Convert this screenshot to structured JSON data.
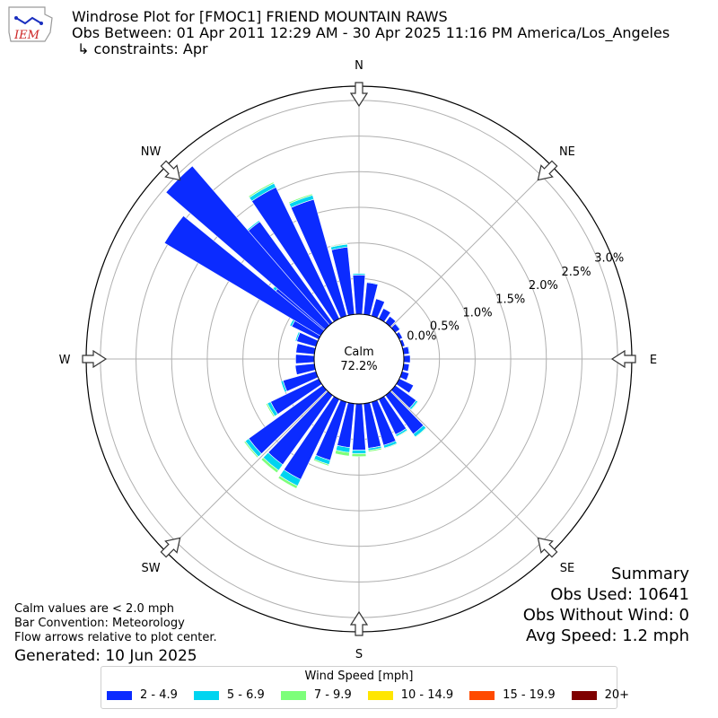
{
  "header": {
    "logo_text": "IEM",
    "title": "Windrose Plot for [FMOC1] FRIEND MOUNTAIN RAWS",
    "obs_between": "Obs Between: 01 Apr 2011 12:29 AM - 30 Apr 2025 11:16 PM America/Los_Angeles",
    "constraints": "↳ constraints: Apr"
  },
  "chart_data": {
    "type": "windrose",
    "directions": [
      "N",
      "NE",
      "E",
      "SE",
      "S",
      "SW",
      "W",
      "NW"
    ],
    "radial_ticks": [
      "0.0%",
      "0.5%",
      "1.0%",
      "1.5%",
      "2.0%",
      "2.5%",
      "3.0%"
    ],
    "rmax_percent": 3.2,
    "calm_label": "Calm",
    "calm_value": "72.2%",
    "speed_bins": [
      {
        "label": "2 - 4.9",
        "color": "#0b2bff"
      },
      {
        "label": "5 - 6.9",
        "color": "#00d4f0"
      },
      {
        "label": "7 - 9.9",
        "color": "#7dff7a"
      },
      {
        "label": "10 - 14.9",
        "color": "#ffe600"
      },
      {
        "label": "15 - 19.9",
        "color": "#ff4a00"
      },
      {
        "label": "20+",
        "color": "#7f0000"
      }
    ],
    "sectors": [
      {
        "dir": 0,
        "values": [
          0.55,
          0.02,
          0,
          0,
          0,
          0
        ]
      },
      {
        "dir": 10,
        "values": [
          0.45,
          0.01,
          0,
          0,
          0,
          0
        ]
      },
      {
        "dir": 20,
        "values": [
          0.25,
          0,
          0,
          0,
          0,
          0
        ]
      },
      {
        "dir": 30,
        "values": [
          0.16,
          0,
          0,
          0,
          0,
          0
        ]
      },
      {
        "dir": 40,
        "values": [
          0.11,
          0,
          0,
          0,
          0,
          0
        ]
      },
      {
        "dir": 50,
        "values": [
          0.08,
          0.01,
          0,
          0,
          0,
          0
        ]
      },
      {
        "dir": 60,
        "values": [
          0.05,
          0,
          0,
          0,
          0,
          0
        ]
      },
      {
        "dir": 70,
        "values": [
          0.04,
          0,
          0,
          0,
          0,
          0
        ]
      },
      {
        "dir": 80,
        "values": [
          0.08,
          0.01,
          0,
          0,
          0,
          0
        ]
      },
      {
        "dir": 90,
        "values": [
          0.09,
          0,
          0,
          0,
          0,
          0
        ]
      },
      {
        "dir": 100,
        "values": [
          0.08,
          0,
          0,
          0,
          0,
          0
        ]
      },
      {
        "dir": 110,
        "values": [
          0.1,
          0,
          0,
          0,
          0,
          0
        ]
      },
      {
        "dir": 120,
        "values": [
          0.22,
          0,
          0,
          0,
          0,
          0
        ]
      },
      {
        "dir": 130,
        "values": [
          0.36,
          0.03,
          0.01,
          0,
          0,
          0
        ]
      },
      {
        "dir": 140,
        "values": [
          0.67,
          0.05,
          0.01,
          0,
          0,
          0
        ]
      },
      {
        "dir": 150,
        "values": [
          0.55,
          0.03,
          0.01,
          0,
          0,
          0
        ]
      },
      {
        "dir": 160,
        "values": [
          0.63,
          0.04,
          0.01,
          0,
          0,
          0
        ]
      },
      {
        "dir": 170,
        "values": [
          0.63,
          0.03,
          0.02,
          0,
          0,
          0
        ]
      },
      {
        "dir": 180,
        "values": [
          0.65,
          0.05,
          0.04,
          0,
          0,
          0
        ]
      },
      {
        "dir": 190,
        "values": [
          0.62,
          0.07,
          0.05,
          0,
          0,
          0
        ]
      },
      {
        "dir": 200,
        "values": [
          0.85,
          0.06,
          0.02,
          0,
          0,
          0
        ]
      },
      {
        "dir": 210,
        "values": [
          1.25,
          0.1,
          0.04,
          0,
          0,
          0
        ]
      },
      {
        "dir": 220,
        "values": [
          1.2,
          0.1,
          0.04,
          0,
          0,
          0
        ]
      },
      {
        "dir": 230,
        "values": [
          1.28,
          0.06,
          0.02,
          0,
          0,
          0
        ]
      },
      {
        "dir": 240,
        "values": [
          0.75,
          0.05,
          0.02,
          0,
          0,
          0
        ]
      },
      {
        "dir": 250,
        "values": [
          0.48,
          0.03,
          0,
          0,
          0,
          0
        ]
      },
      {
        "dir": 260,
        "values": [
          0.27,
          0,
          0,
          0,
          0,
          0
        ]
      },
      {
        "dir": 270,
        "values": [
          0.26,
          0,
          0,
          0,
          0,
          0
        ]
      },
      {
        "dir": 280,
        "values": [
          0.26,
          0,
          0,
          0,
          0,
          0
        ]
      },
      {
        "dir": 290,
        "values": [
          0.28,
          0.02,
          0,
          0,
          0,
          0
        ]
      },
      {
        "dir": 300,
        "values": [
          0.42,
          0.03,
          0,
          0,
          0,
          0
        ]
      },
      {
        "dir": 310,
        "values": [
          0.88,
          0.05,
          0.01,
          0,
          0,
          0
        ]
      },
      {
        "dir": 320,
        "values": [
          1.75,
          0.02,
          0,
          0,
          0,
          0
        ]
      },
      {
        "dir": 330,
        "values": [
          2.05,
          0.06,
          0.02,
          0,
          0,
          0
        ]
      },
      {
        "dir": 340,
        "values": [
          1.7,
          0.06,
          0.02,
          0,
          0,
          0
        ]
      },
      {
        "dir": 350,
        "values": [
          0.95,
          0.04,
          0.01,
          0,
          0,
          0
        ]
      }
    ],
    "extra_sectors_note": "",
    "nw_extra": [
      {
        "dir": 315,
        "values": [
          2.95,
          0,
          0,
          0,
          0,
          0
        ]
      },
      {
        "dir": 305,
        "values": [
          2.55,
          0,
          0,
          0,
          0,
          0
        ]
      }
    ]
  },
  "summary": {
    "heading": "Summary",
    "obs_used": "Obs Used: 10641",
    "obs_without_wind": "Obs Without Wind: 0",
    "avg_speed": "Avg Speed: 1.2 mph"
  },
  "notes": {
    "calm": "Calm values are < 2.0 mph",
    "convention": "Bar Convention: Meteorology",
    "flow": "Flow arrows relative to plot center.",
    "generated": "Generated: 10 Jun 2025"
  },
  "legend": {
    "title": "Wind Speed [mph]"
  }
}
